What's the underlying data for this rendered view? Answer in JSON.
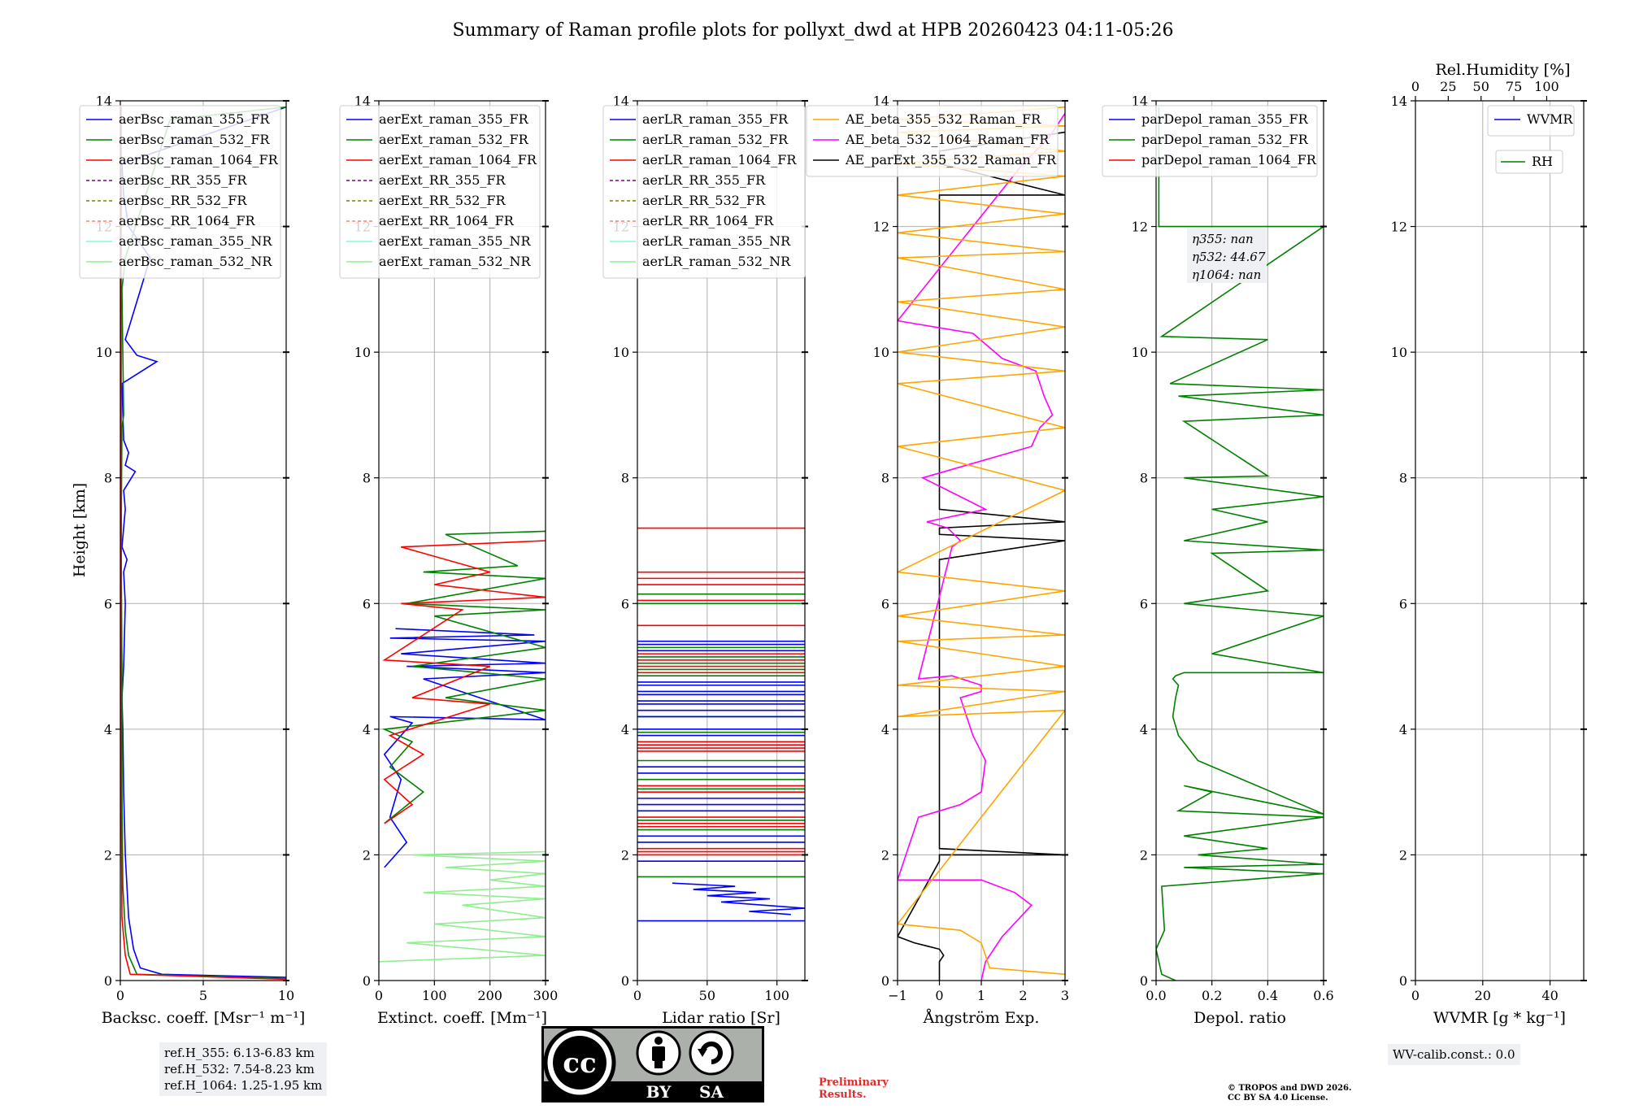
{
  "title": "Summary of Raman profile plots for pollyxt_dwd at HPB 20260423 04:11-05:26",
  "ylabel": "Height [km]",
  "colors": {
    "blue": "#0000ff",
    "green": "#008000",
    "red": "#ff0000",
    "purple": "#800080",
    "olive": "#808000",
    "salmon": "#fa8072",
    "cyan": "#7fffd4",
    "lightgreen": "#90ee90",
    "orange": "#ffa500",
    "magenta": "#ff00ff",
    "black": "#000000"
  },
  "chart_data": [
    {
      "id": "backscatter",
      "type": "line",
      "xlabel": "Backsc. coeff. [Msr⁻¹ m⁻¹]",
      "xlim": [
        0,
        10
      ],
      "ylim": [
        0,
        14
      ],
      "xticks": [
        "0",
        "5",
        "10"
      ],
      "xtick_values": [
        0,
        5,
        10
      ],
      "yticks": [
        "0",
        "2",
        "4",
        "6",
        "8",
        "10",
        "12",
        "14"
      ],
      "legend": [
        "aerBsc_raman_355_FR",
        "aerBsc_raman_532_FR",
        "aerBsc_raman_1064_FR",
        "aerBsc_RR_355_FR",
        "aerBsc_RR_532_FR",
        "aerBsc_RR_1064_FR",
        "aerBsc_raman_355_NR",
        "aerBsc_raman_532_NR"
      ],
      "legend_colors": [
        "blue",
        "green",
        "red",
        "purple",
        "olive",
        "salmon",
        "cyan",
        "lightgreen"
      ],
      "legend_dashed": [
        false,
        false,
        false,
        true,
        true,
        true,
        false,
        false
      ],
      "series": [
        {
          "name": "aerBsc_raman_355_FR",
          "color": "blue",
          "x": [
            10,
            2.5,
            1.2,
            0.8,
            0.5,
            0.3,
            0.2,
            0.15,
            0.1,
            0.2,
            0.3,
            0.2,
            0.4,
            0.1,
            0.3,
            0.2,
            0.9,
            0.3,
            0.5,
            0.2,
            0.1,
            2.2,
            1.0,
            0.3,
            1.8,
            0.5,
            0.2,
            0.1,
            10
          ],
          "y": [
            0.05,
            0.1,
            0.2,
            0.5,
            1.0,
            2.0,
            3.0,
            4.0,
            4.5,
            5.0,
            6.0,
            6.5,
            6.7,
            6.9,
            7.5,
            7.8,
            8.1,
            8.2,
            8.4,
            8.6,
            9.5,
            9.85,
            9.95,
            10.2,
            11.5,
            12.0,
            12.5,
            13.0,
            13.9
          ]
        },
        {
          "name": "aerBsc_raman_532_FR",
          "color": "green",
          "x": [
            10,
            1.0,
            0.5,
            0.3,
            0.15,
            0.1,
            0.1,
            0.05,
            0.1,
            0.2,
            0.1,
            0.3,
            3.0,
            10
          ],
          "y": [
            0.03,
            0.1,
            0.4,
            0.8,
            1.5,
            3.0,
            5.0,
            7.0,
            8.8,
            9.0,
            11.0,
            11.5,
            13.7,
            13.9
          ]
        },
        {
          "name": "aerBsc_raman_1064_FR",
          "color": "red",
          "x": [
            10,
            0.6,
            0.3,
            0.1,
            0.05,
            0.05
          ],
          "y": [
            0.02,
            0.1,
            0.4,
            1.0,
            3.0,
            13.9
          ]
        }
      ],
      "ref_heights": [
        "ref.H_355: 6.13-6.83 km",
        "ref.H_532: 7.54-8.23 km",
        "ref.H_1064: 1.25-1.95 km"
      ]
    },
    {
      "id": "extinction",
      "type": "line",
      "xlabel": "Extinct. coeff. [Mm⁻¹]",
      "xlim": [
        0,
        300
      ],
      "ylim": [
        0,
        14
      ],
      "xticks": [
        "0",
        "100",
        "200",
        "300"
      ],
      "xtick_values": [
        0,
        100,
        200,
        300
      ],
      "yticks": [
        "0",
        "2",
        "4",
        "6",
        "8",
        "10",
        "12",
        "14"
      ],
      "legend": [
        "aerExt_raman_355_FR",
        "aerExt_raman_532_FR",
        "aerExt_raman_1064_FR",
        "aerExt_RR_355_FR",
        "aerExt_RR_532_FR",
        "aerExt_RR_1064_FR",
        "aerExt_raman_355_NR",
        "aerExt_raman_532_NR"
      ],
      "legend_colors": [
        "blue",
        "green",
        "red",
        "purple",
        "olive",
        "salmon",
        "cyan",
        "lightgreen"
      ],
      "legend_dashed": [
        false,
        false,
        false,
        true,
        true,
        true,
        false,
        false
      ],
      "series": [
        {
          "name": "aerExt_raman_355_FR",
          "color": "blue",
          "x": [
            10,
            50,
            20,
            40,
            10,
            60,
            20,
            300,
            80,
            300,
            50,
            300,
            40,
            300,
            20,
            280,
            30
          ],
          "y": [
            1.8,
            2.2,
            2.6,
            3.2,
            3.6,
            4.1,
            4.2,
            4.15,
            4.8,
            4.9,
            5.0,
            5.05,
            5.2,
            5.4,
            5.45,
            5.5,
            5.6
          ]
        },
        {
          "name": "aerExt_raman_532_FR",
          "color": "green",
          "x": [
            10,
            80,
            20,
            60,
            10,
            300,
            120,
            300,
            60,
            300,
            100,
            300,
            50,
            300,
            80,
            250,
            120,
            300
          ],
          "y": [
            2.5,
            3.0,
            3.4,
            3.8,
            4.0,
            4.3,
            4.5,
            4.8,
            5.0,
            5.3,
            5.8,
            5.9,
            6.0,
            6.4,
            6.5,
            6.6,
            7.1,
            7.15
          ]
        },
        {
          "name": "aerExt_raman_1064_FR",
          "color": "red",
          "x": [
            10,
            60,
            10,
            80,
            20,
            200,
            60,
            200,
            10,
            150,
            40,
            300,
            100,
            200,
            40,
            300
          ],
          "y": [
            2.5,
            2.8,
            3.2,
            3.6,
            3.9,
            4.4,
            4.5,
            5.0,
            5.1,
            5.9,
            6.0,
            6.1,
            6.3,
            6.5,
            6.9,
            7.0
          ]
        },
        {
          "name": "aerExt_raman_532_NR",
          "color": "lightgreen",
          "x": [
            0,
            300,
            50,
            300,
            100,
            300,
            150,
            300,
            80,
            300,
            200,
            300,
            120,
            300,
            60,
            300
          ],
          "y": [
            0.3,
            0.4,
            0.6,
            0.7,
            0.9,
            1.0,
            1.2,
            1.3,
            1.4,
            1.5,
            1.6,
            1.7,
            1.8,
            1.9,
            2.0,
            2.05
          ]
        }
      ]
    },
    {
      "id": "lidar_ratio",
      "type": "line",
      "xlabel": "Lidar ratio [Sr]",
      "xlim": [
        0,
        120
      ],
      "ylim": [
        0,
        14
      ],
      "xticks": [
        "0",
        "50",
        "100"
      ],
      "xtick_values": [
        0,
        50,
        100
      ],
      "yticks": [
        "0",
        "2",
        "4",
        "6",
        "8",
        "10",
        "12",
        "14"
      ],
      "legend": [
        "aerLR_raman_355_FR",
        "aerLR_raman_532_FR",
        "aerLR_raman_1064_FR",
        "aerLR_RR_355_FR",
        "aerLR_RR_532_FR",
        "aerLR_RR_1064_FR",
        "aerLR_raman_355_NR",
        "aerLR_raman_532_NR"
      ],
      "legend_colors": [
        "blue",
        "green",
        "red",
        "purple",
        "olive",
        "salmon",
        "cyan",
        "lightgreen"
      ],
      "legend_dashed": [
        false,
        false,
        false,
        true,
        true,
        true,
        false,
        false
      ],
      "hlines": [
        {
          "color": "red",
          "y": [
            7.2,
            6.5,
            6.4,
            6.3,
            6.05,
            5.65,
            5.2,
            5.1,
            5.0,
            4.9,
            3.8,
            3.75,
            3.7,
            3.65,
            3.1,
            3.0,
            2.6,
            2.5,
            2.45,
            2.1,
            2.05,
            2.0
          ]
        },
        {
          "color": "green",
          "y": [
            6.15,
            6.0,
            5.3,
            5.15,
            5.05,
            4.95,
            4.85,
            4.2,
            3.95,
            3.5,
            3.2,
            3.05,
            2.55,
            2.4,
            1.65
          ]
        },
        {
          "color": "blue",
          "y": [
            5.4,
            5.35,
            5.25,
            4.75,
            4.7,
            4.6,
            4.55,
            4.45,
            4.4,
            4.3,
            4.2,
            4.0,
            3.9,
            3.4,
            3.3,
            2.9,
            2.8,
            2.7,
            2.3,
            2.2,
            1.9,
            0.95
          ]
        }
      ],
      "series": [
        {
          "name": "aerLR_raman_355_FR",
          "color": "blue",
          "x": [
            25,
            70,
            40,
            85,
            50,
            95,
            60,
            120,
            80,
            110
          ],
          "y": [
            1.55,
            1.5,
            1.45,
            1.4,
            1.35,
            1.3,
            1.25,
            1.15,
            1.1,
            1.05
          ]
        }
      ]
    },
    {
      "id": "angstrom",
      "type": "line",
      "xlabel": "Ångström Exp.",
      "xlim": [
        -1,
        3
      ],
      "ylim": [
        0,
        14
      ],
      "xticks": [
        "−1",
        "0",
        "1",
        "2",
        "3"
      ],
      "xtick_values": [
        -1,
        0,
        1,
        2,
        3
      ],
      "yticks": [
        "0",
        "2",
        "4",
        "6",
        "8",
        "10",
        "12",
        "14"
      ],
      "legend": [
        "AE_beta_355_532_Raman_FR",
        "AE_beta_532_1064_Raman_FR",
        "AE_parExt_355_532_Raman_FR"
      ],
      "legend_colors": [
        "orange",
        "magenta",
        "black"
      ],
      "legend_dashed": [
        false,
        false,
        false
      ],
      "series": [
        {
          "name": "AE_parExt_355_532_Raman_FR",
          "color": "black",
          "x": [
            0,
            0,
            0.1,
            0,
            -0.6,
            -1,
            0,
            0,
            3,
            0,
            0,
            3,
            0,
            0,
            3,
            0,
            0,
            3,
            0,
            0,
            3
          ],
          "y": [
            0,
            0.3,
            0.4,
            0.5,
            0.6,
            0.7,
            1.9,
            2.0,
            2.0,
            2.1,
            6.7,
            7.0,
            7.1,
            7.2,
            7.3,
            7.5,
            12.5,
            12.5,
            13.0,
            13.2,
            13.5
          ]
        },
        {
          "name": "AE_beta_532_1064_Raman_FR",
          "color": "magenta",
          "x": [
            1.0,
            1.1,
            1.5,
            2.2,
            1.8,
            1.0,
            -1,
            -0.5,
            0.5,
            1.0,
            1.1,
            0.8,
            0.5,
            1.0,
            1.0,
            0.3,
            -0.5,
            0.3,
            0.5,
            0.2,
            -0.3,
            1.1,
            0.5,
            -0.4,
            2.2,
            2.4,
            2.7,
            2.5,
            2.3,
            1.5,
            0.8,
            -1,
            2.0,
            2.6,
            2.8,
            3.0
          ],
          "y": [
            0.0,
            0.3,
            0.7,
            1.2,
            1.4,
            1.6,
            1.6,
            2.6,
            2.8,
            3.0,
            3.5,
            3.9,
            4.5,
            4.6,
            4.7,
            4.85,
            4.8,
            6.9,
            7.0,
            7.2,
            7.3,
            7.5,
            7.7,
            8.0,
            8.5,
            8.8,
            9.0,
            9.3,
            9.7,
            9.9,
            10.3,
            10.5,
            13.0,
            13.4,
            13.6,
            13.8
          ]
        },
        {
          "name": "AE_beta_355_532_Raman_FR",
          "color": "orange",
          "x": [
            3,
            1.2,
            1.0,
            0.5,
            -1,
            3,
            -1,
            3,
            -1,
            3,
            -1,
            3,
            -1,
            3,
            -1,
            3,
            -1,
            3,
            -1,
            3,
            -1,
            3,
            -1,
            3,
            -1,
            3,
            -1,
            3,
            -1,
            3,
            -1,
            3,
            -1,
            3,
            -1,
            3
          ],
          "y": [
            0.1,
            0.2,
            0.6,
            0.8,
            0.9,
            4.3,
            4.2,
            4.6,
            4.7,
            5.0,
            5.4,
            5.5,
            5.8,
            6.2,
            6.5,
            7.8,
            8.5,
            8.8,
            9.5,
            9.7,
            10.0,
            10.4,
            10.8,
            11.0,
            11.5,
            11.6,
            11.9,
            12.2,
            12.5,
            12.8,
            13.0,
            13.2,
            13.5,
            13.6,
            13.7,
            13.9
          ]
        }
      ]
    },
    {
      "id": "depol",
      "type": "line",
      "xlabel": "Depol. ratio",
      "xlim": [
        0,
        0.6
      ],
      "ylim": [
        0,
        14
      ],
      "xticks": [
        "0.0",
        "0.2",
        "0.4",
        "0.6"
      ],
      "xtick_values": [
        0,
        0.2,
        0.4,
        0.6
      ],
      "yticks": [
        "0",
        "2",
        "4",
        "6",
        "8",
        "10",
        "12",
        "14"
      ],
      "legend": [
        "parDepol_raman_355_FR",
        "parDepol_raman_532_FR",
        "parDepol_raman_1064_FR"
      ],
      "legend_colors": [
        "blue",
        "green",
        "red"
      ],
      "legend_dashed": [
        false,
        false,
        false
      ],
      "annotation": [
        "η355: nan",
        "η532: 44.67",
        "η1064: nan"
      ],
      "series": [
        {
          "name": "parDepol_raman_532_FR",
          "color": "green",
          "x": [
            0.07,
            0.02,
            0.0,
            0.03,
            0.02,
            0.6,
            0.1,
            0.6,
            0.15,
            0.4,
            0.1,
            0.6,
            0.08,
            0.12,
            0.2,
            0.1,
            0.6,
            0.15,
            0.08,
            0.06,
            0.07,
            0.08,
            0.06,
            0.07,
            0.1,
            0.6,
            0.2,
            0.6,
            0.1,
            0.4,
            0.2,
            0.6,
            0.1,
            0.4,
            0.2,
            0.6,
            0.1,
            0.4,
            0.1,
            0.6,
            0.08,
            0.6,
            0.05,
            0.4,
            0.02,
            0.6,
            0.01,
            0.01
          ],
          "y": [
            0.0,
            0.1,
            0.5,
            0.8,
            1.5,
            1.7,
            1.8,
            1.85,
            2.0,
            2.1,
            2.3,
            2.6,
            2.7,
            2.8,
            3.0,
            3.1,
            2.65,
            3.5,
            3.9,
            4.2,
            4.5,
            4.7,
            4.8,
            4.85,
            4.9,
            4.9,
            5.2,
            5.8,
            6.0,
            6.2,
            6.8,
            6.85,
            7.0,
            7.3,
            7.5,
            7.7,
            8.0,
            8.03,
            8.9,
            9.0,
            9.3,
            9.4,
            9.5,
            10.2,
            10.25,
            12.0,
            12.0,
            13.9
          ]
        }
      ]
    },
    {
      "id": "wvmr",
      "type": "line",
      "xlabel": "WVMR [g * kg⁻¹]",
      "top_xlabel": "Rel.Humidity [%]",
      "xlim": [
        0,
        50
      ],
      "ylim": [
        0,
        14
      ],
      "xticks": [
        "0",
        "20",
        "40"
      ],
      "xtick_values": [
        0,
        20,
        40
      ],
      "top_xticks": [
        "0",
        "25",
        "50",
        "75",
        "100"
      ],
      "top_xtick_values": [
        0,
        25,
        50,
        75,
        100
      ],
      "yticks": [
        "0",
        "2",
        "4",
        "6",
        "8",
        "10",
        "12",
        "14"
      ],
      "legend": [
        "WVMR"
      ],
      "legend_colors": [
        "blue"
      ],
      "legend_dashed": [
        false
      ],
      "legend2": [
        "RH"
      ],
      "legend2_colors": [
        "green"
      ],
      "wv_calib": "WV-calib.const.: 0.0",
      "series": []
    }
  ],
  "cc_license": {
    "cc": "cc",
    "by": "BY",
    "sa": "SA"
  },
  "preliminary": [
    "Preliminary",
    "Results."
  ],
  "credits": [
    "© TROPOS and DWD 2026.",
    "CC BY SA 4.0 License."
  ]
}
